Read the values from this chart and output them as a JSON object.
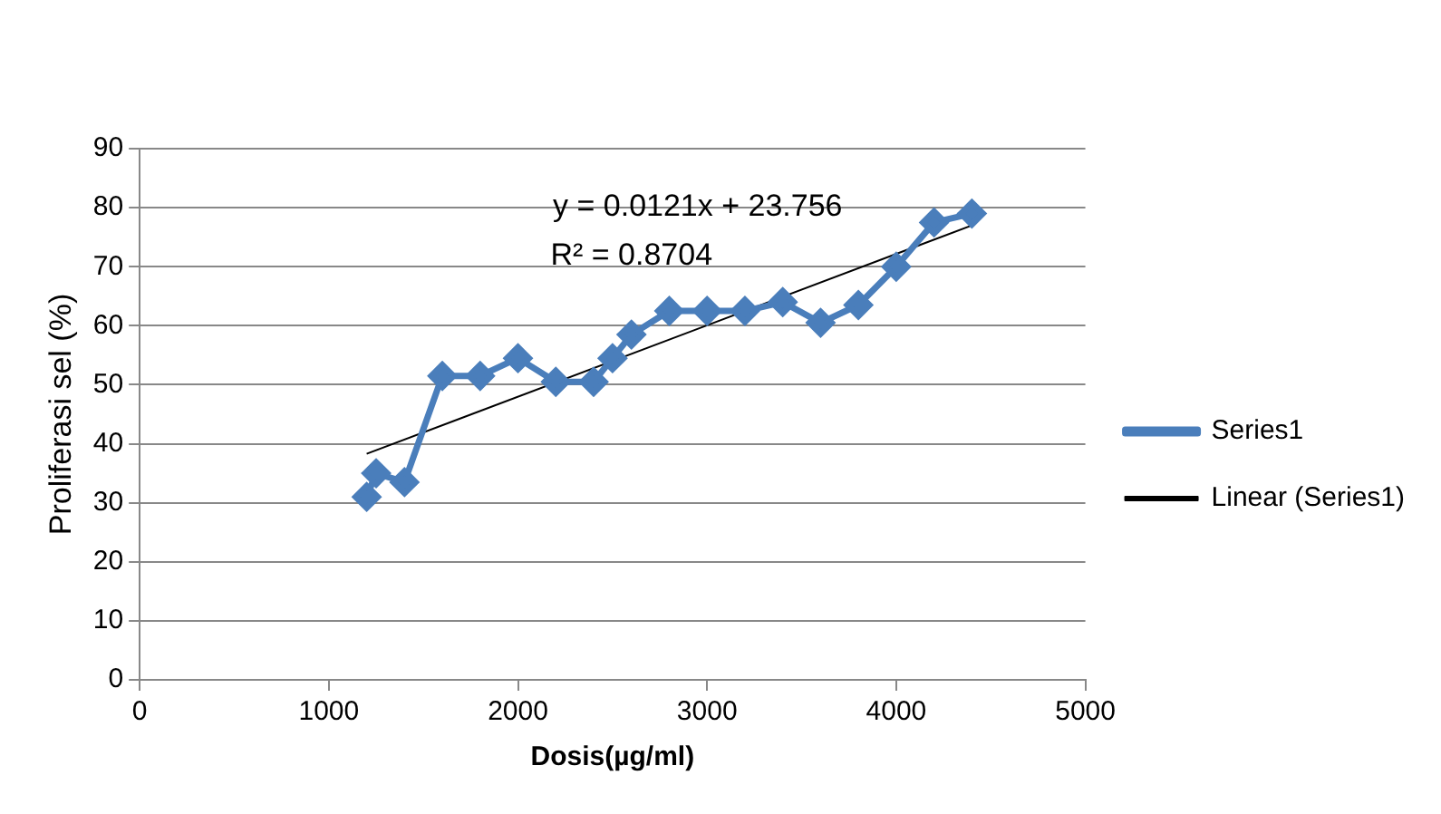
{
  "chart_data": {
    "type": "line",
    "xlabel": "Dosis(µg/ml)",
    "ylabel": "Proliferasi sel (%)",
    "x": [
      1200,
      1250,
      1400,
      1600,
      1800,
      2000,
      2200,
      2400,
      2500,
      2600,
      2800,
      3000,
      3200,
      3400,
      3600,
      3800,
      4000,
      4200,
      4400
    ],
    "series": [
      {
        "name": "Series1",
        "color": "#4a7ebb",
        "marker": "diamond",
        "values": [
          31,
          35,
          33.5,
          51.5,
          51.5,
          54.5,
          50.5,
          50.5,
          54.5,
          58.5,
          62.5,
          62.5,
          62.5,
          64,
          60.5,
          63.5,
          70,
          77.5,
          79
        ]
      },
      {
        "name": "Linear (Series1)",
        "type": "line",
        "color": "#000000",
        "marker": "none",
        "x": [
          1200,
          4400
        ],
        "values": [
          38.3,
          77
        ]
      }
    ],
    "annotations": [
      "y = 0.0121x + 23.756",
      "R² = 0.8704"
    ],
    "xlim": [
      0,
      5000
    ],
    "xticks": [
      0,
      1000,
      2000,
      3000,
      4000,
      5000
    ],
    "ylim": [
      0,
      90
    ],
    "yticks": [
      0,
      10,
      20,
      30,
      40,
      50,
      60,
      70,
      80,
      90
    ],
    "grid": "y",
    "legend": "right",
    "line_style": "solid"
  }
}
